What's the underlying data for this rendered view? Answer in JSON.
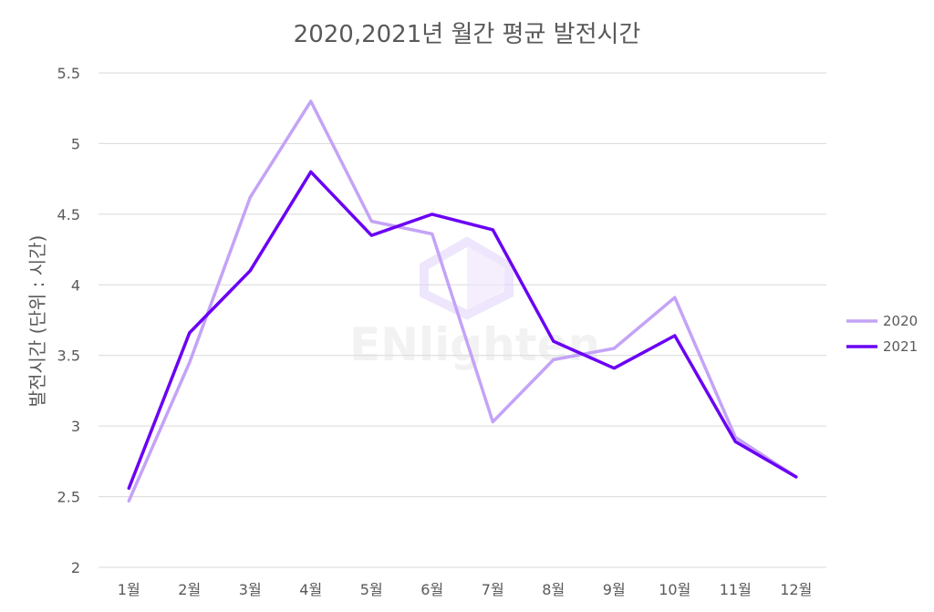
{
  "chart_data": {
    "type": "line",
    "title": "2020,2021년 월간 평균 발전시간",
    "xlabel": "",
    "ylabel": "발전시간 (단위 : 시간)",
    "categories": [
      "1월",
      "2월",
      "3월",
      "4월",
      "5월",
      "6월",
      "7월",
      "8월",
      "9월",
      "10월",
      "11월",
      "12월"
    ],
    "ylim": [
      2,
      5.5
    ],
    "yticks": [
      "2",
      "2.5",
      "3",
      "3.5",
      "4",
      "4.5",
      "5",
      "5.5"
    ],
    "grid": true,
    "legend_position": "right",
    "series": [
      {
        "name": "2020",
        "color": "#c4a3f7",
        "values": [
          2.47,
          3.45,
          4.62,
          5.3,
          4.45,
          4.36,
          3.03,
          3.47,
          3.55,
          3.91,
          2.92,
          2.64
        ]
      },
      {
        "name": "2021",
        "color": "#6a00f4",
        "values": [
          2.56,
          3.66,
          4.1,
          4.8,
          4.35,
          4.5,
          4.39,
          3.6,
          3.41,
          3.64,
          2.89,
          2.64
        ]
      }
    ]
  },
  "watermark": {
    "text": "ENlighten"
  }
}
